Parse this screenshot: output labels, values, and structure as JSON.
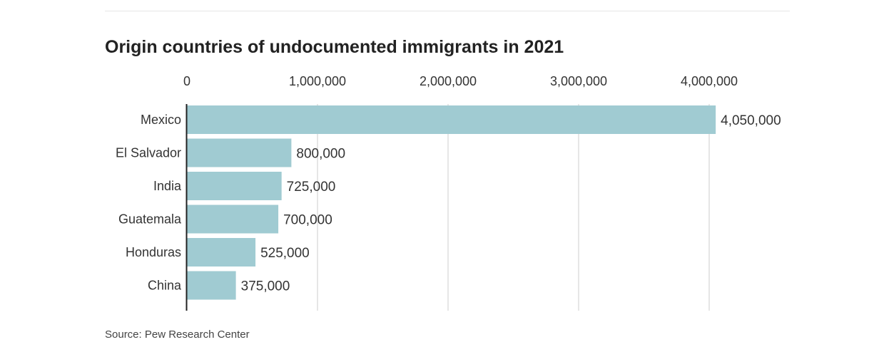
{
  "chart_data": {
    "type": "bar",
    "orientation": "horizontal",
    "title": "Origin countries of undocumented immigrants in 2021",
    "categories": [
      "Mexico",
      "El Salvador",
      "India",
      "Guatemala",
      "Honduras",
      "China"
    ],
    "values": [
      4050000,
      800000,
      725000,
      700000,
      525000,
      375000
    ],
    "value_labels": [
      "4,050,000",
      "800,000",
      "725,000",
      "700,000",
      "525,000",
      "375,000"
    ],
    "x_ticks": [
      0,
      1000000,
      2000000,
      3000000,
      4000000
    ],
    "x_tick_labels": [
      "0",
      "1,000,000",
      "2,000,000",
      "3,000,000",
      "4,000,000"
    ],
    "xlim": [
      0,
      4500000
    ],
    "axis_position": "top",
    "grid": true,
    "bar_color": "#a0cbd2",
    "grid_color": "#dddddd"
  },
  "source": "Source: Pew Research Center"
}
